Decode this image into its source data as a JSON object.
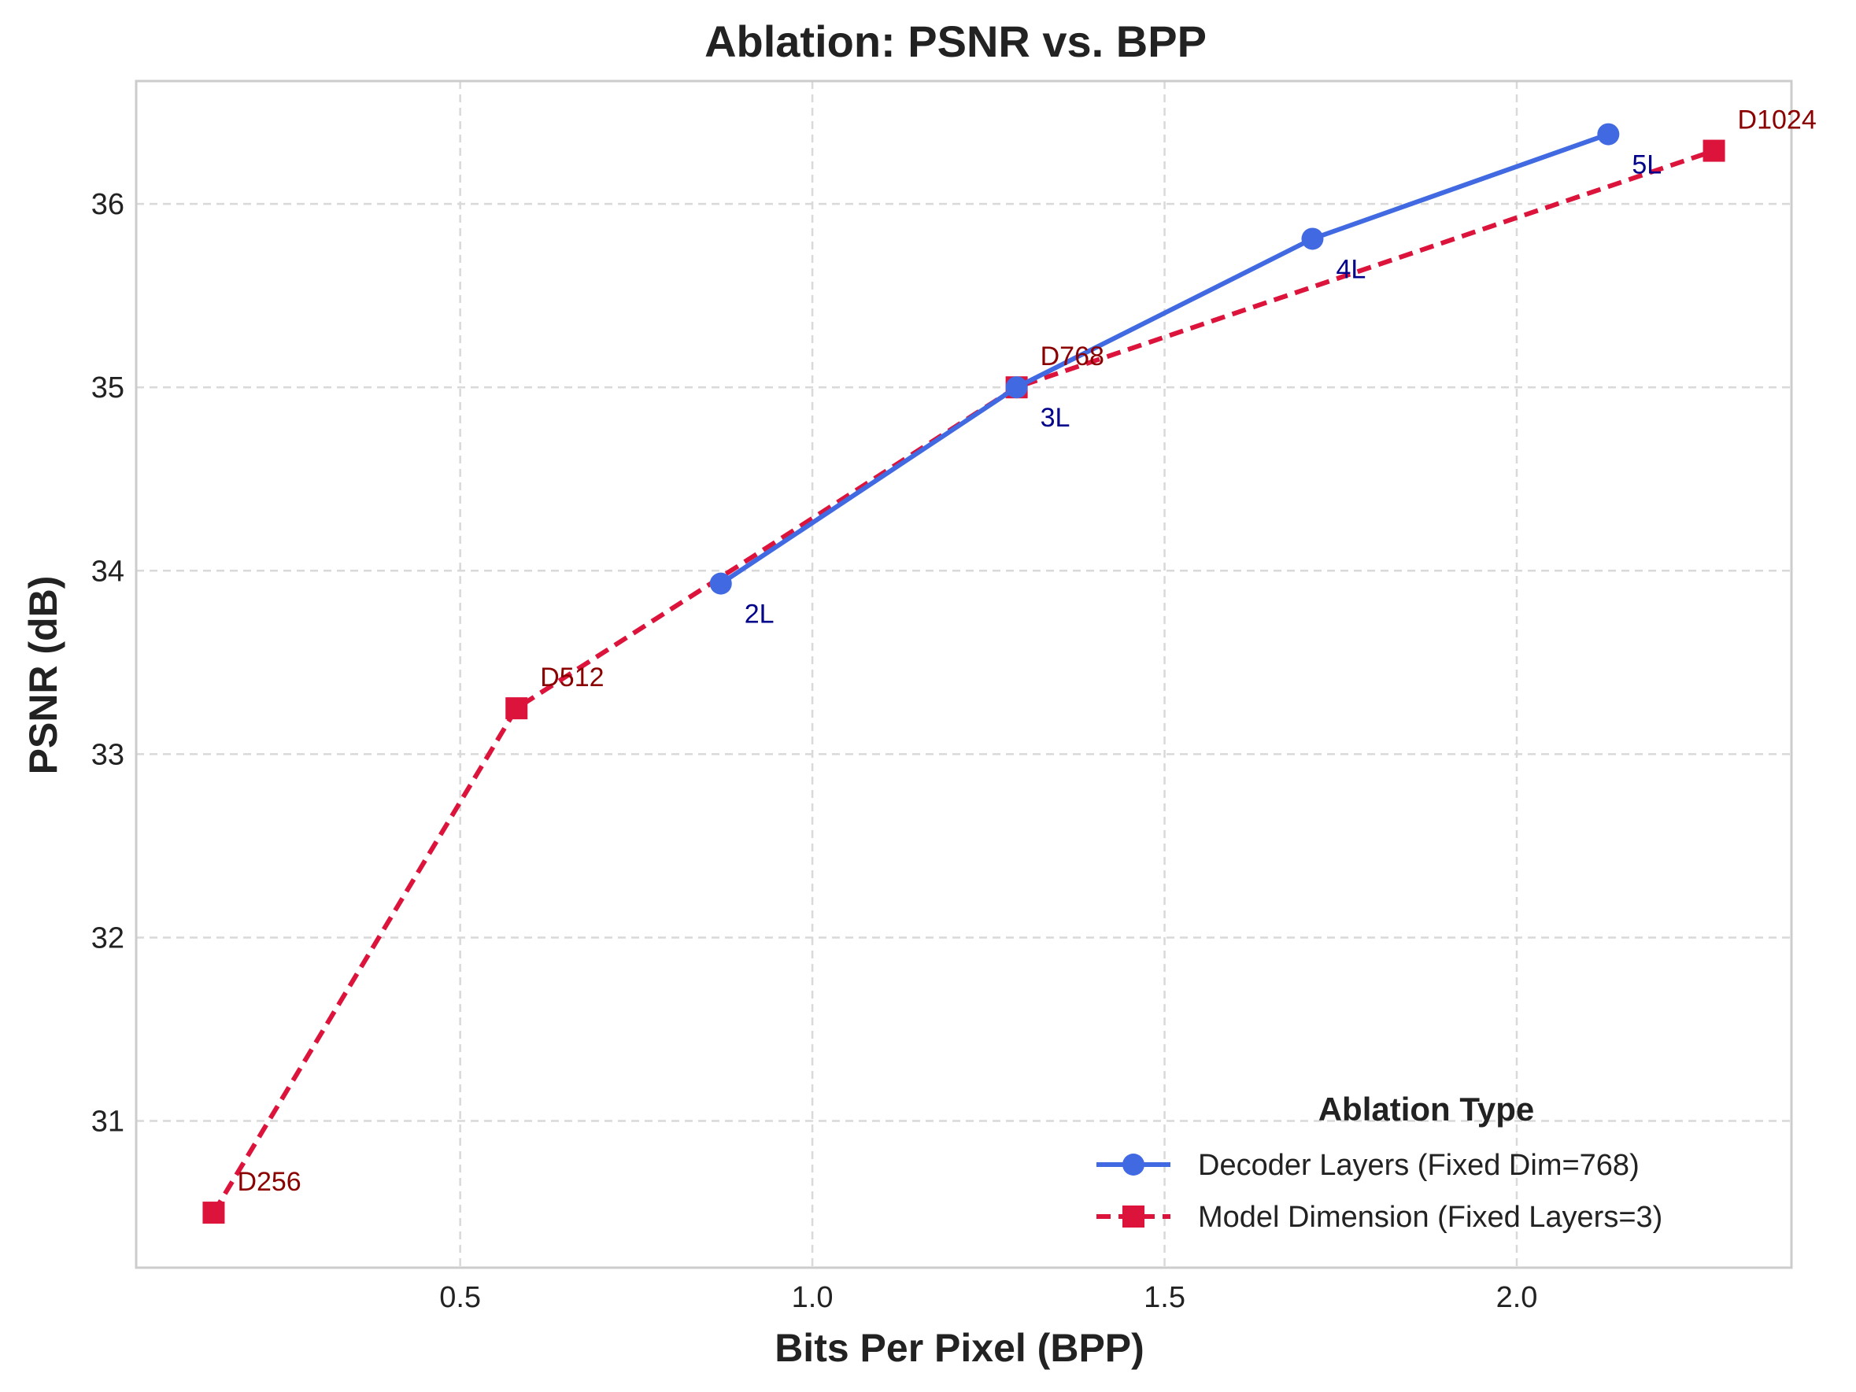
{
  "chart_data": {
    "type": "line",
    "title": "Ablation: PSNR vs. BPP",
    "xlabel": "Bits Per Pixel (BPP)",
    "ylabel": "PSNR (dB)",
    "xlim": [
      0.04,
      2.39
    ],
    "ylim": [
      30.2,
      36.67
    ],
    "xticks": [
      0.5,
      1.0,
      1.5,
      2.0
    ],
    "xtick_labels": [
      "0.5",
      "1.0",
      "1.5",
      "2.0"
    ],
    "yticks": [
      31,
      32,
      33,
      34,
      35,
      36
    ],
    "ytick_labels": [
      "31",
      "32",
      "33",
      "34",
      "35",
      "36"
    ],
    "grid": true,
    "legend": {
      "title": "Ablation Type",
      "position": "bottom-right"
    },
    "series": [
      {
        "name": "Decoder Layers (Fixed Dim=768)",
        "color": "#4169E1",
        "marker": "circle",
        "line_style": "solid",
        "x": [
          0.87,
          1.29,
          1.71,
          2.13
        ],
        "y": [
          33.93,
          35.0,
          35.81,
          36.38
        ],
        "point_labels": [
          "2L",
          "3L",
          "4L",
          "5L"
        ],
        "label_color": "#00008B"
      },
      {
        "name": "Model Dimension (Fixed Layers=3)",
        "color": "#DC143C",
        "marker": "square",
        "line_style": "dashed",
        "x": [
          0.15,
          0.58,
          1.29,
          2.28
        ],
        "y": [
          30.5,
          33.25,
          35.0,
          36.29
        ],
        "point_labels": [
          "D256",
          "D512",
          "D768",
          "D1024"
        ],
        "label_color": "#8B0000"
      }
    ]
  }
}
